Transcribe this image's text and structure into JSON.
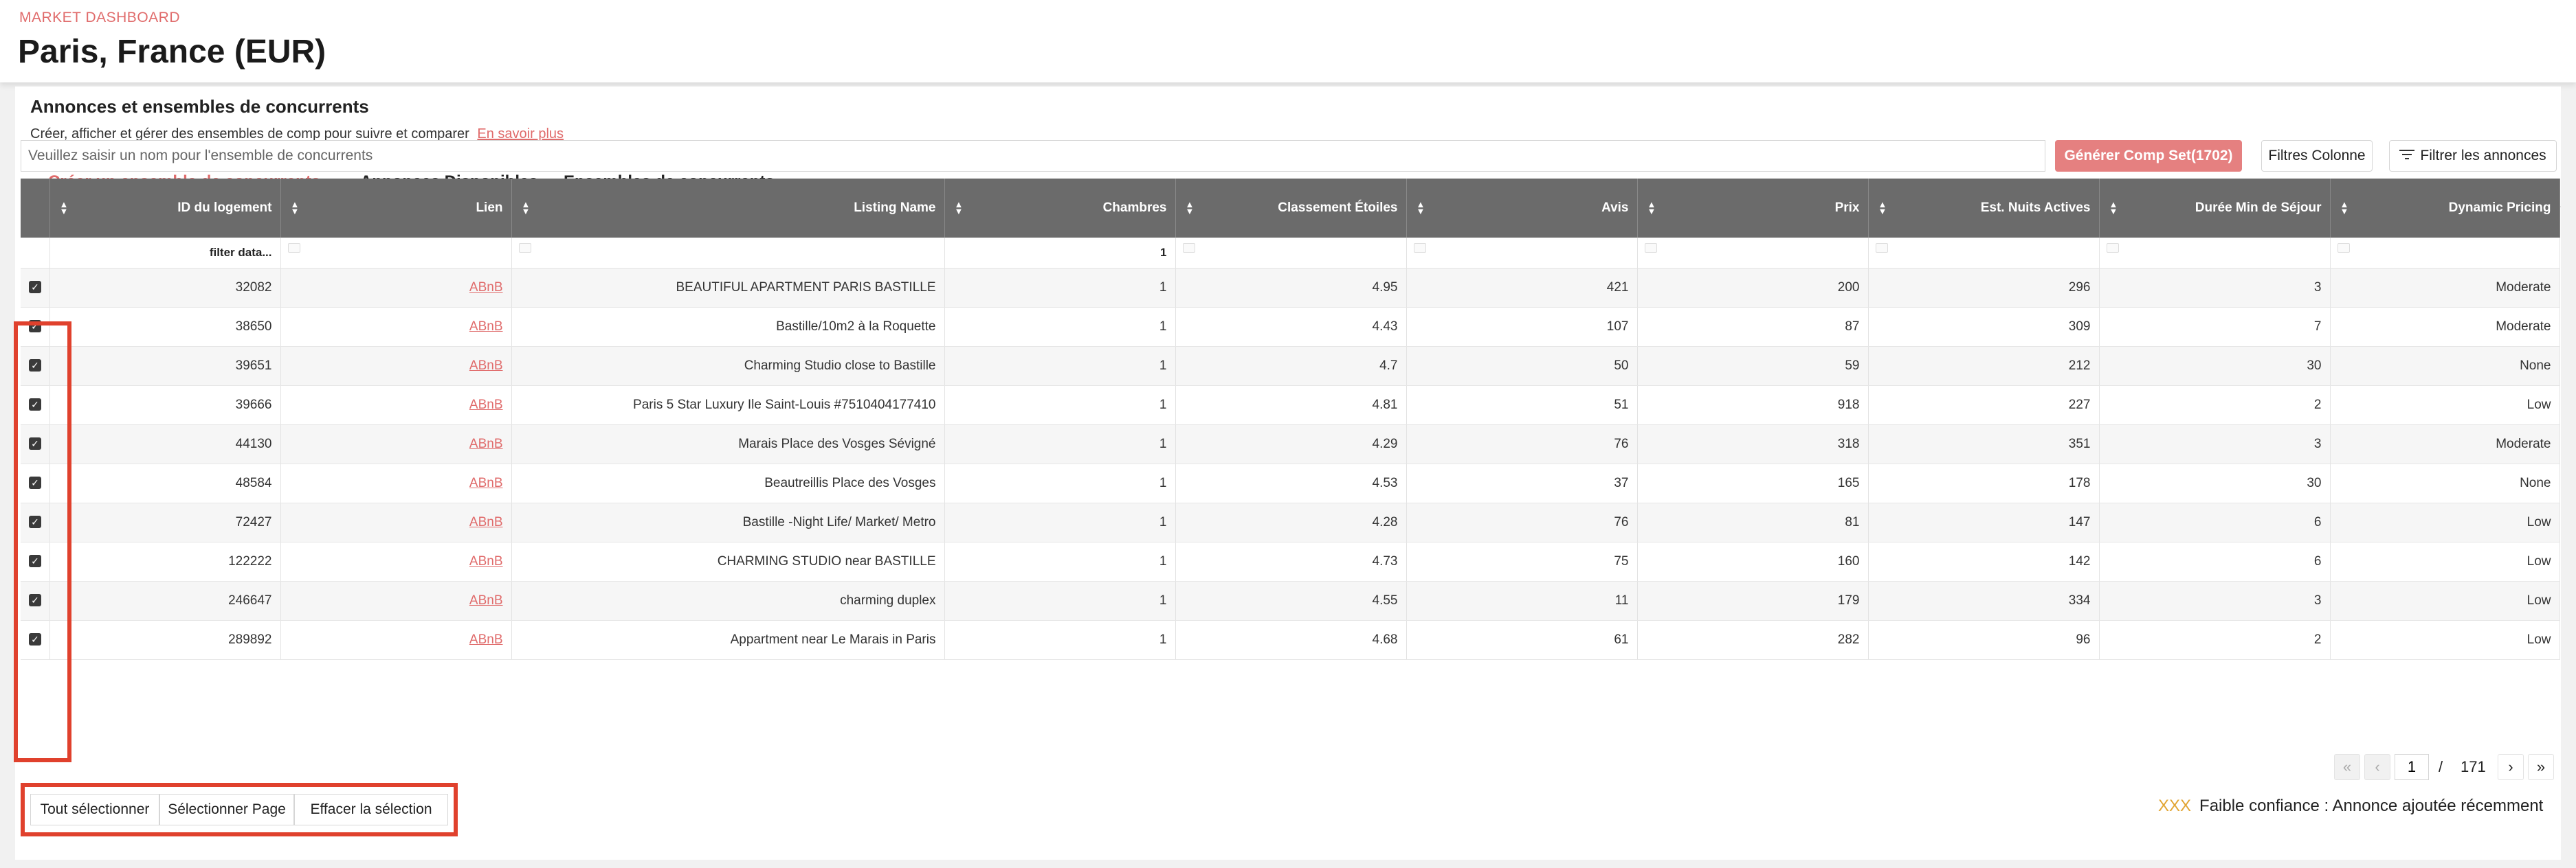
{
  "header": {
    "crumb": "MARKET DASHBOARD",
    "title": "Paris, France (EUR)"
  },
  "section": {
    "title": "Annonces et ensembles de concurrents",
    "description": "Créer, afficher et gérer des ensembles de comp pour suivre et comparer",
    "learn_more": "En savoir plus"
  },
  "tabs": [
    {
      "label": "Créer un ensemble de concurrents",
      "active": true
    },
    {
      "label": "Annonces Disponibles",
      "active": false
    },
    {
      "label": "Ensembles de concurrents",
      "active": false
    }
  ],
  "toolbar": {
    "name_placeholder": "Veuillez saisir un nom pour l'ensemble de concurrents",
    "generate_label": "Générer Comp Set(1702)",
    "column_filters_label": "Filtres Colonne",
    "filter_listings_label": "Filtrer les annonces",
    "filter_icon": "filter-lines-icon"
  },
  "table": {
    "columns": [
      "ID du logement",
      "Lien",
      "Listing Name",
      "Chambres",
      "Classement Étoiles",
      "Avis",
      "Prix",
      "Est. Nuits Actives",
      "Durée Min de Séjour",
      "Dynamic Pricing"
    ],
    "filter_row": {
      "id": "filter data...",
      "chambres": "1"
    },
    "rows": [
      {
        "checked": true,
        "id": "32082",
        "link": "ABnB",
        "name": "BEAUTIFUL APARTMENT PARIS BASTILLE",
        "chambres": "1",
        "stars": "4.95",
        "avis": "421",
        "prix": "200",
        "nuits": "296",
        "duree": "3",
        "pricing": "Moderate"
      },
      {
        "checked": true,
        "id": "38650",
        "link": "ABnB",
        "name": "Bastille/10m2 à la Roquette",
        "chambres": "1",
        "stars": "4.43",
        "avis": "107",
        "prix": "87",
        "nuits": "309",
        "duree": "7",
        "pricing": "Moderate"
      },
      {
        "checked": true,
        "id": "39651",
        "link": "ABnB",
        "name": "Charming Studio close to Bastille",
        "chambres": "1",
        "stars": "4.7",
        "avis": "50",
        "prix": "59",
        "nuits": "212",
        "duree": "30",
        "pricing": "None"
      },
      {
        "checked": true,
        "id": "39666",
        "link": "ABnB",
        "name": "Paris 5 Star Luxury Ile Saint-Louis #7510404177410",
        "chambres": "1",
        "stars": "4.81",
        "avis": "51",
        "prix": "918",
        "nuits": "227",
        "duree": "2",
        "pricing": "Low"
      },
      {
        "checked": true,
        "id": "44130",
        "link": "ABnB",
        "name": "Marais Place des Vosges Sévigné",
        "chambres": "1",
        "stars": "4.29",
        "avis": "76",
        "prix": "318",
        "nuits": "351",
        "duree": "3",
        "pricing": "Moderate"
      },
      {
        "checked": true,
        "id": "48584",
        "link": "ABnB",
        "name": "Beautreillis Place des Vosges",
        "chambres": "1",
        "stars": "4.53",
        "avis": "37",
        "prix": "165",
        "nuits": "178",
        "duree": "30",
        "pricing": "None"
      },
      {
        "checked": true,
        "id": "72427",
        "link": "ABnB",
        "name": "Bastille -Night Life/ Market/ Metro",
        "chambres": "1",
        "stars": "4.28",
        "avis": "76",
        "prix": "81",
        "nuits": "147",
        "duree": "6",
        "pricing": "Low"
      },
      {
        "checked": true,
        "id": "122222",
        "link": "ABnB",
        "name": "CHARMING STUDIO near BASTILLE",
        "chambres": "1",
        "stars": "4.73",
        "avis": "75",
        "prix": "160",
        "nuits": "142",
        "duree": "6",
        "pricing": "Low"
      },
      {
        "checked": true,
        "id": "246647",
        "link": "ABnB",
        "name": "charming duplex",
        "chambres": "1",
        "stars": "4.55",
        "avis": "11",
        "prix": "179",
        "nuits": "334",
        "duree": "3",
        "pricing": "Low"
      },
      {
        "checked": true,
        "id": "289892",
        "link": "ABnB",
        "name": "Appartment near Le Marais in Paris",
        "chambres": "1",
        "stars": "4.68",
        "avis": "61",
        "prix": "282",
        "nuits": "96",
        "duree": "2",
        "pricing": "Low"
      }
    ]
  },
  "pagination": {
    "current_page": "1",
    "separator": "/",
    "total_pages": "171",
    "first_icon": "double-chevron-left-icon",
    "prev_icon": "chevron-left-icon",
    "next_icon": "chevron-right-icon",
    "last_icon": "double-chevron-right-icon"
  },
  "selection": {
    "select_all": "Tout sélectionner",
    "select_page": "Sélectionner Page",
    "clear": "Effacer la sélection"
  },
  "legend": {
    "marker": "XXX",
    "text": "Faible confiance : Annonce ajoutée récemment",
    "marker_color": "#e2a635"
  },
  "colors": {
    "accent": "#e06b6b",
    "header_bg": "#6b6b6b",
    "highlight": "#e0412d"
  }
}
